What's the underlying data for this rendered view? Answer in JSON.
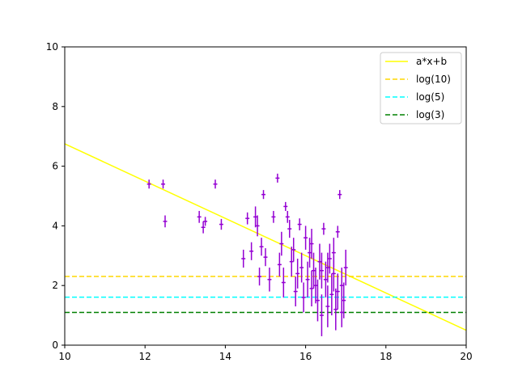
{
  "chart_data": {
    "type": "scatter",
    "title": "",
    "xlabel": "",
    "ylabel": "",
    "xlim": [
      10,
      20
    ],
    "ylim": [
      0,
      10
    ],
    "xticks": [
      "10",
      "12",
      "14",
      "16",
      "18",
      "20"
    ],
    "yticks": [
      "0",
      "2",
      "4",
      "6",
      "8",
      "10"
    ],
    "grid": false,
    "legend_position": "top-right",
    "fit_line": {
      "name": "a*x+b",
      "color": "#ffff00",
      "points": [
        [
          10,
          6.75
        ],
        [
          20,
          0.5
        ]
      ]
    },
    "hlines": [
      {
        "name": "log(10)",
        "y": 2.3026,
        "color": "#ffd700",
        "style": "dashed"
      },
      {
        "name": "log(5)",
        "y": 1.6094,
        "color": "#00ffff",
        "style": "dashed"
      },
      {
        "name": "log(3)",
        "y": 1.0986,
        "color": "#008000",
        "style": "dashed"
      }
    ],
    "scatter": {
      "color": "#9400d3",
      "points": [
        [
          12.1,
          5.4,
          0.15,
          0.05
        ],
        [
          12.45,
          5.4,
          0.15,
          0.05
        ],
        [
          12.5,
          4.15,
          0.2,
          0.05
        ],
        [
          13.35,
          4.3,
          0.2,
          0.05
        ],
        [
          13.45,
          3.95,
          0.2,
          0.05
        ],
        [
          13.5,
          4.15,
          0.15,
          0.05
        ],
        [
          13.75,
          5.4,
          0.15,
          0.05
        ],
        [
          13.9,
          4.05,
          0.18,
          0.05
        ],
        [
          14.45,
          2.9,
          0.3,
          0.05
        ],
        [
          14.55,
          4.25,
          0.2,
          0.05
        ],
        [
          14.65,
          3.15,
          0.3,
          0.05
        ],
        [
          14.75,
          4.3,
          0.35,
          0.05
        ],
        [
          14.8,
          4.0,
          0.35,
          0.05
        ],
        [
          14.85,
          2.3,
          0.3,
          0.05
        ],
        [
          14.9,
          3.3,
          0.3,
          0.05
        ],
        [
          14.95,
          5.05,
          0.15,
          0.05
        ],
        [
          15.0,
          2.95,
          0.3,
          0.05
        ],
        [
          15.1,
          2.2,
          0.4,
          0.05
        ],
        [
          15.2,
          4.3,
          0.2,
          0.05
        ],
        [
          15.3,
          5.6,
          0.15,
          0.05
        ],
        [
          15.4,
          3.4,
          0.4,
          0.05
        ],
        [
          15.45,
          2.1,
          0.5,
          0.05
        ],
        [
          15.5,
          4.65,
          0.15,
          0.05
        ],
        [
          15.55,
          4.3,
          0.2,
          0.05
        ],
        [
          15.6,
          3.9,
          0.3,
          0.05
        ],
        [
          15.65,
          2.8,
          0.5,
          0.05
        ],
        [
          15.7,
          3.2,
          0.4,
          0.05
        ],
        [
          15.8,
          2.4,
          0.5,
          0.05
        ],
        [
          15.85,
          4.05,
          0.2,
          0.05
        ],
        [
          15.9,
          2.6,
          0.5,
          0.05
        ],
        [
          16.0,
          3.6,
          0.4,
          0.05
        ],
        [
          16.05,
          2.2,
          0.6,
          0.05
        ],
        [
          16.1,
          3.1,
          0.5,
          0.05
        ],
        [
          16.15,
          1.9,
          0.6,
          0.05
        ],
        [
          16.2,
          2.5,
          0.6,
          0.05
        ],
        [
          16.3,
          1.5,
          0.7,
          0.05
        ],
        [
          16.35,
          2.8,
          0.6,
          0.05
        ],
        [
          16.4,
          1.0,
          0.7,
          0.05
        ],
        [
          16.45,
          3.9,
          0.2,
          0.05
        ],
        [
          16.5,
          2.2,
          0.6,
          0.05
        ],
        [
          16.55,
          1.3,
          0.7,
          0.05
        ],
        [
          16.6,
          2.9,
          0.5,
          0.05
        ],
        [
          16.65,
          1.7,
          0.7,
          0.05
        ],
        [
          16.7,
          2.4,
          0.6,
          0.05
        ],
        [
          16.75,
          1.2,
          0.7,
          0.05
        ],
        [
          16.8,
          3.8,
          0.2,
          0.05
        ],
        [
          16.85,
          5.05,
          0.15,
          0.05
        ],
        [
          16.9,
          2.0,
          0.6,
          0.05
        ],
        [
          16.95,
          1.5,
          0.6,
          0.05
        ],
        [
          17.0,
          2.6,
          0.6,
          0.05
        ],
        [
          15.75,
          1.8,
          0.5,
          0.05
        ],
        [
          16.25,
          2.0,
          0.6,
          0.05
        ],
        [
          16.55,
          2.6,
          0.5,
          0.05
        ],
        [
          16.8,
          1.8,
          0.6,
          0.05
        ],
        [
          15.95,
          1.6,
          0.5,
          0.05
        ],
        [
          16.4,
          2.5,
          0.6,
          0.05
        ],
        [
          16.15,
          3.4,
          0.5,
          0.05
        ],
        [
          16.7,
          3.1,
          0.5,
          0.05
        ],
        [
          16.9,
          1.1,
          0.5,
          0.05
        ],
        [
          15.35,
          2.7,
          0.4,
          0.05
        ]
      ]
    }
  }
}
